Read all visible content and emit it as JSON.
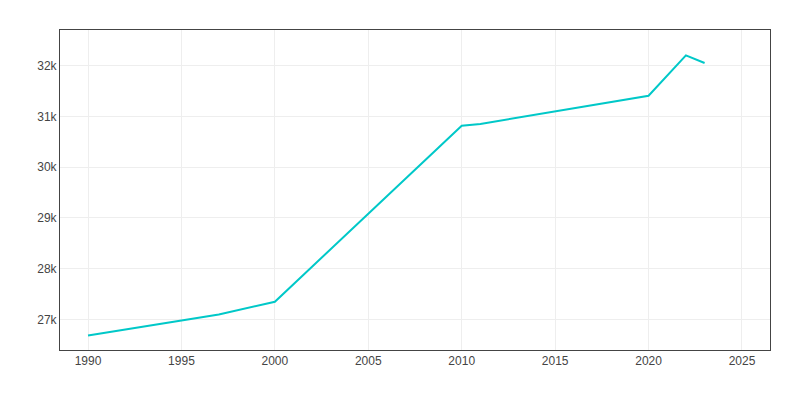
{
  "chart_data": {
    "type": "line",
    "x": [
      1990,
      1997,
      2000,
      2010,
      2011,
      2015,
      2020,
      2022,
      2023
    ],
    "values": [
      26687,
      27100,
      27350,
      30816,
      30850,
      31100,
      31405,
      32200,
      32050
    ],
    "color": "#00c8c8",
    "xlim": [
      1988.5,
      2026.5
    ],
    "ylim": [
      26400,
      32700
    ],
    "xticks": [
      1990,
      1995,
      2000,
      2005,
      2010,
      2015,
      2020,
      2025
    ],
    "yticks": [
      {
        "value": 27000,
        "label": "27k"
      },
      {
        "value": 28000,
        "label": "28k"
      },
      {
        "value": 29000,
        "label": "29k"
      },
      {
        "value": 30000,
        "label": "30k"
      },
      {
        "value": 31000,
        "label": "31k"
      },
      {
        "value": 32000,
        "label": "32k"
      }
    ],
    "grid": true
  }
}
